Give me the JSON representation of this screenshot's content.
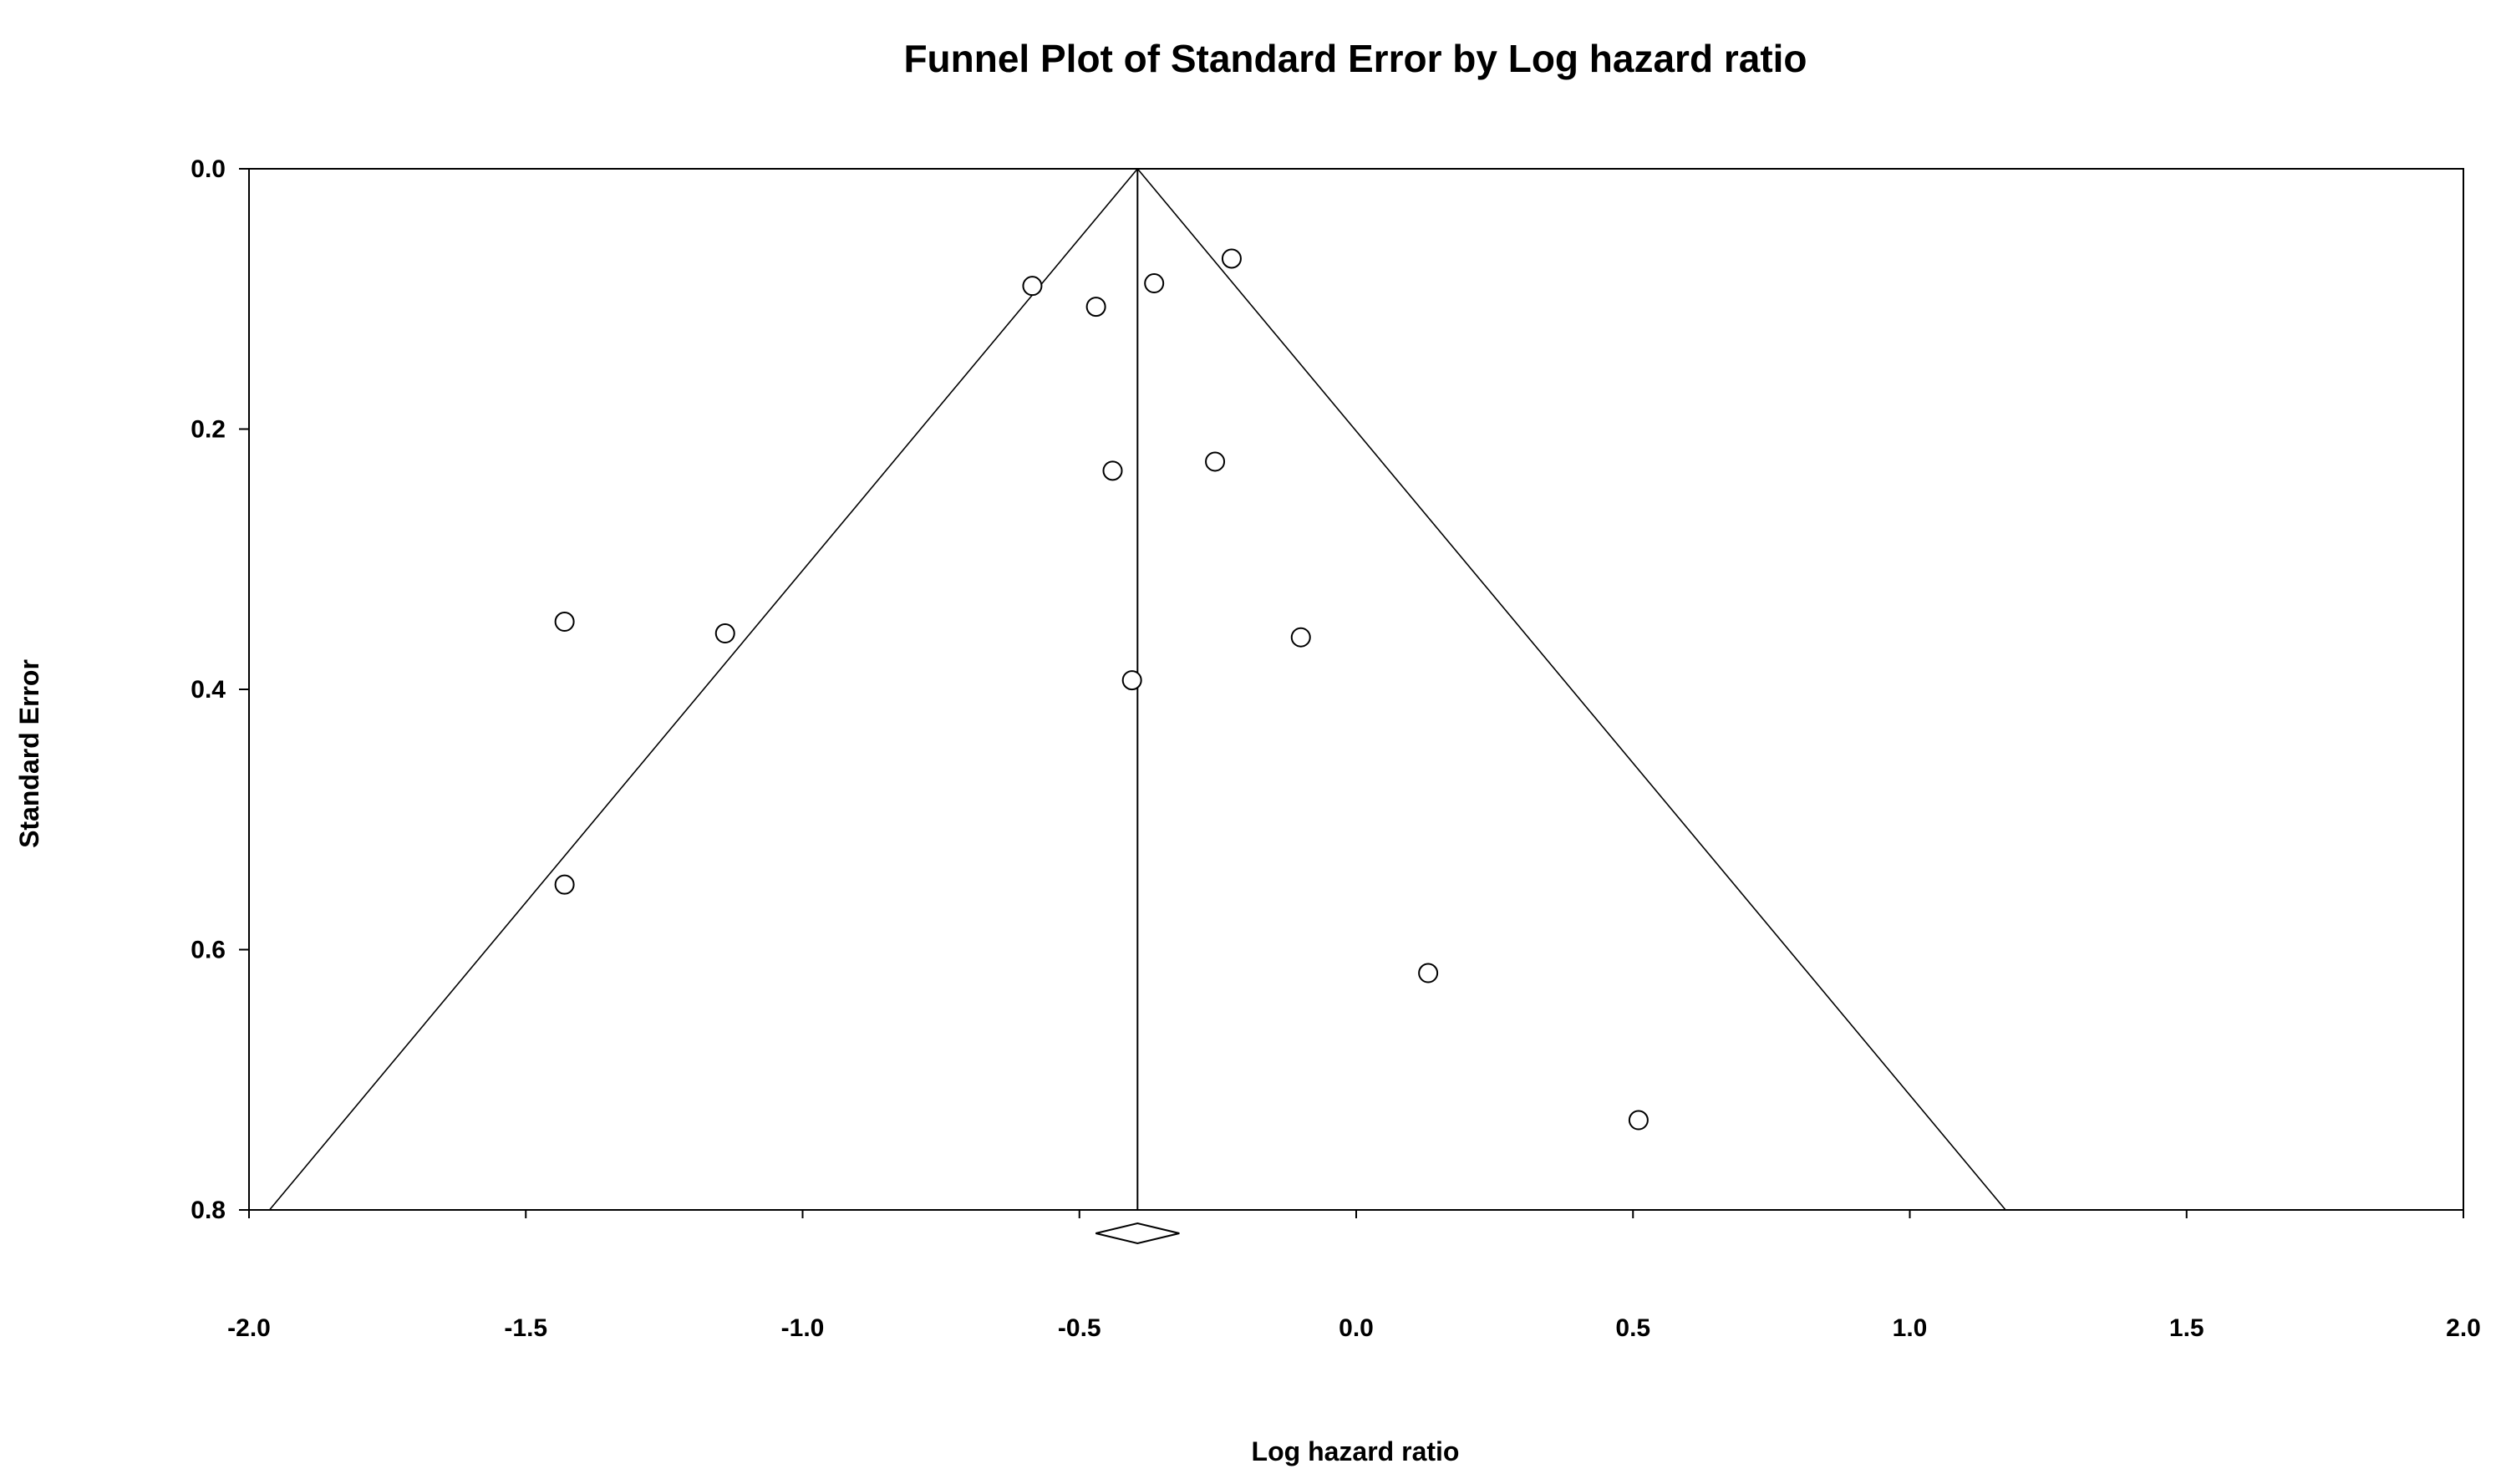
{
  "chart_data": {
    "type": "scatter",
    "title": "Funnel Plot of Standard Error by Log hazard ratio",
    "xlabel": "Log hazard ratio",
    "ylabel": "Standard Error",
    "xlim": [
      -2.0,
      2.0
    ],
    "ylim": [
      0.0,
      0.8
    ],
    "y_inverted": true,
    "x_ticks": [
      "-2.0",
      "-1.5",
      "-1.0",
      "-0.5",
      "0.0",
      "0.5",
      "1.0",
      "1.5",
      "2.0"
    ],
    "y_ticks": [
      "0.0",
      "0.2",
      "0.4",
      "0.6",
      "0.8"
    ],
    "grid": false,
    "legend": "none",
    "pooled_estimate": -0.395,
    "funnel_multiplier": 1.96,
    "points": [
      {
        "x": -0.585,
        "y": 0.09
      },
      {
        "x": -0.47,
        "y": 0.106
      },
      {
        "x": -0.365,
        "y": 0.088
      },
      {
        "x": -0.225,
        "y": 0.069
      },
      {
        "x": -0.44,
        "y": 0.232
      },
      {
        "x": -0.255,
        "y": 0.225
      },
      {
        "x": -1.43,
        "y": 0.348
      },
      {
        "x": -1.14,
        "y": 0.357
      },
      {
        "x": -0.1,
        "y": 0.36
      },
      {
        "x": -0.405,
        "y": 0.393
      },
      {
        "x": -1.43,
        "y": 0.55
      },
      {
        "x": 0.13,
        "y": 0.618
      },
      {
        "x": 0.51,
        "y": 0.731
      }
    ],
    "colors": {
      "marks": "#000000",
      "background": "#ffffff"
    }
  }
}
